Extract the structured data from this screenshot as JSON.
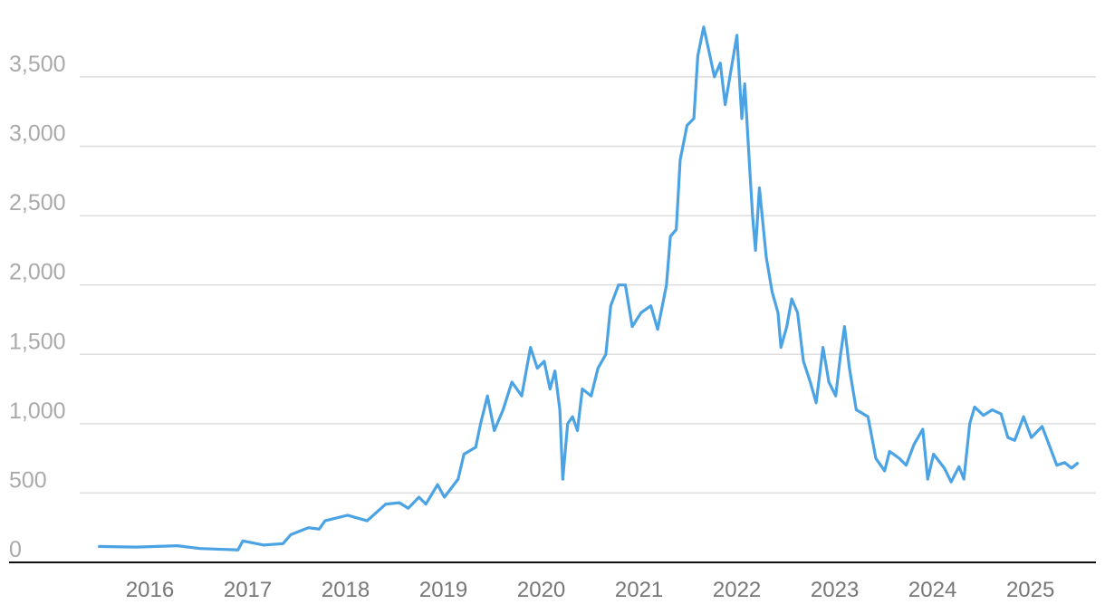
{
  "chart_data": {
    "type": "line",
    "color": "#4ba3e3",
    "grid": true,
    "x": [
      2015.47,
      2015.86,
      2016.28,
      2016.51,
      2016.9,
      2016.95,
      2017.16,
      2017.36,
      2017.44,
      2017.62,
      2017.73,
      2017.79,
      2018.02,
      2018.22,
      2018.41,
      2018.55,
      2018.64,
      2018.75,
      2018.82,
      2018.94,
      2019.01,
      2019.15,
      2019.21,
      2019.33,
      2019.38,
      2019.45,
      2019.52,
      2019.61,
      2019.7,
      2019.8,
      2019.89,
      2019.96,
      2020.03,
      2020.09,
      2020.14,
      2020.19,
      2020.22,
      2020.27,
      2020.32,
      2020.37,
      2020.42,
      2020.51,
      2020.58,
      2020.66,
      2020.71,
      2020.79,
      2020.86,
      2020.93,
      2021.02,
      2021.12,
      2021.19,
      2021.28,
      2021.32,
      2021.38,
      2021.42,
      2021.49,
      2021.56,
      2021.6,
      2021.66,
      2021.71,
      2021.77,
      2021.83,
      2021.88,
      2021.94,
      2022.0,
      2022.05,
      2022.08,
      2022.13,
      2022.16,
      2022.19,
      2022.23,
      2022.3,
      2022.36,
      2022.42,
      2022.45,
      2022.51,
      2022.56,
      2022.62,
      2022.68,
      2022.75,
      2022.81,
      2022.88,
      2022.94,
      2023.01,
      2023.06,
      2023.1,
      2023.15,
      2023.22,
      2023.34,
      2023.42,
      2023.51,
      2023.56,
      2023.66,
      2023.73,
      2023.81,
      2023.9,
      2023.95,
      2024.01,
      2024.12,
      2024.19,
      2024.27,
      2024.32,
      2024.38,
      2024.43,
      2024.52,
      2024.61,
      2024.7,
      2024.77,
      2024.84,
      2024.93,
      2025.01,
      2025.12,
      2025.19,
      2025.27,
      2025.35,
      2025.42,
      2025.49
    ],
    "values": [
      115,
      110,
      120,
      100,
      90,
      155,
      125,
      135,
      200,
      250,
      240,
      300,
      340,
      300,
      420,
      430,
      390,
      470,
      420,
      560,
      470,
      600,
      780,
      830,
      1000,
      1200,
      950,
      1100,
      1300,
      1200,
      1550,
      1400,
      1450,
      1250,
      1380,
      1100,
      600,
      1000,
      1050,
      950,
      1250,
      1200,
      1400,
      1500,
      1850,
      2000,
      2000,
      1700,
      1800,
      1850,
      1680,
      2000,
      2350,
      2400,
      2900,
      3150,
      3200,
      3650,
      3860,
      3700,
      3500,
      3600,
      3300,
      3550,
      3800,
      3200,
      3450,
      2850,
      2500,
      2250,
      2700,
      2200,
      1950,
      1800,
      1550,
      1700,
      1900,
      1800,
      1450,
      1300,
      1150,
      1550,
      1300,
      1200,
      1500,
      1700,
      1400,
      1100,
      1050,
      750,
      660,
      800,
      750,
      700,
      850,
      960,
      600,
      780,
      680,
      580,
      690,
      600,
      1000,
      1120,
      1060,
      1100,
      1070,
      900,
      880,
      1050,
      900,
      980,
      850,
      700,
      720,
      680,
      720
    ],
    "xlim": [
      2014.56,
      2025.67
    ],
    "xticks": [
      2016,
      2017,
      2018,
      2019,
      2020,
      2021,
      2022,
      2023,
      2024,
      2025
    ],
    "ylim": [
      0,
      3950
    ],
    "yticks": [
      0,
      500,
      {
        "value": 1000,
        "label": "1,000"
      },
      {
        "value": 1500,
        "label": "1,500"
      },
      {
        "value": 2000,
        "label": "2,000"
      },
      {
        "value": 2500,
        "label": "2,500"
      },
      {
        "value": 3000,
        "label": "3,000"
      },
      {
        "value": 3500,
        "label": "3,500"
      }
    ]
  }
}
